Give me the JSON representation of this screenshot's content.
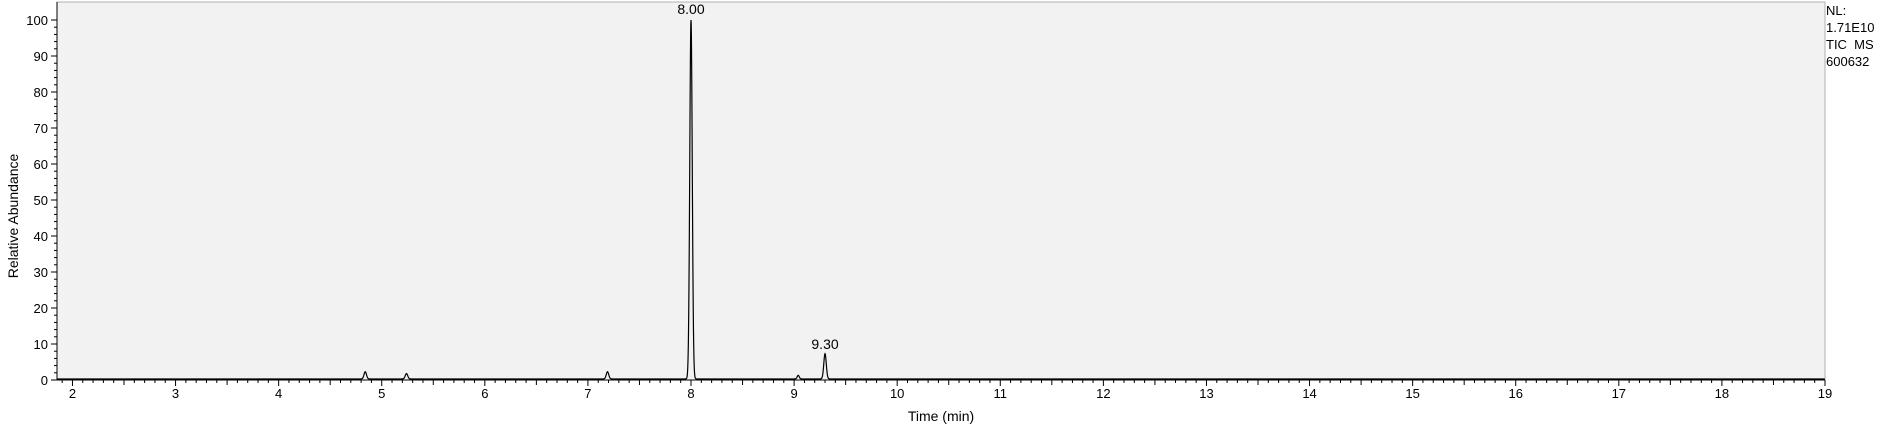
{
  "chart_data": {
    "type": "line",
    "title": "",
    "xlabel": "Time (min)",
    "ylabel": "Relative Abundance",
    "xlim": [
      1.85,
      19.0
    ],
    "ylim": [
      0,
      105
    ],
    "grid": false,
    "background": "#f2f2f2",
    "line_color": "#000000",
    "x_ticks": [
      2,
      3,
      4,
      5,
      6,
      7,
      8,
      9,
      10,
      11,
      12,
      13,
      14,
      15,
      16,
      17,
      18,
      19
    ],
    "x_tick_labels": [
      "2",
      "3",
      "4",
      "5",
      "6",
      "7",
      "8",
      "9",
      "10",
      "11",
      "12",
      "13",
      "14",
      "15",
      "16",
      "17",
      "18",
      "19"
    ],
    "y_ticks": [
      0,
      10,
      20,
      30,
      40,
      50,
      60,
      70,
      80,
      90,
      100
    ],
    "y_tick_labels": [
      "0",
      "10",
      "20",
      "30",
      "40",
      "50",
      "60",
      "70",
      "80",
      "90",
      "100"
    ],
    "series": [
      {
        "baseline": 0.3,
        "peaks": [
          {
            "rt": 4.84,
            "height": 2.0,
            "width": 0.012
          },
          {
            "rt": 5.24,
            "height": 1.5,
            "width": 0.012
          },
          {
            "rt": 7.19,
            "height": 2.0,
            "width": 0.012
          },
          {
            "rt": 8.0,
            "height": 100,
            "width": 0.012
          },
          {
            "rt": 9.04,
            "height": 1.0,
            "width": 0.01
          },
          {
            "rt": 9.3,
            "height": 7.0,
            "width": 0.012
          }
        ]
      }
    ],
    "peak_labels": [
      {
        "x": 8.0,
        "y": 100,
        "text": "8.00"
      },
      {
        "x": 9.3,
        "y": 7.0,
        "text": "9.30"
      }
    ]
  },
  "info": {
    "nl_label": "NL:",
    "nl_value": "1.71E10",
    "trace_type": "TIC  MS",
    "sample": "600632"
  }
}
